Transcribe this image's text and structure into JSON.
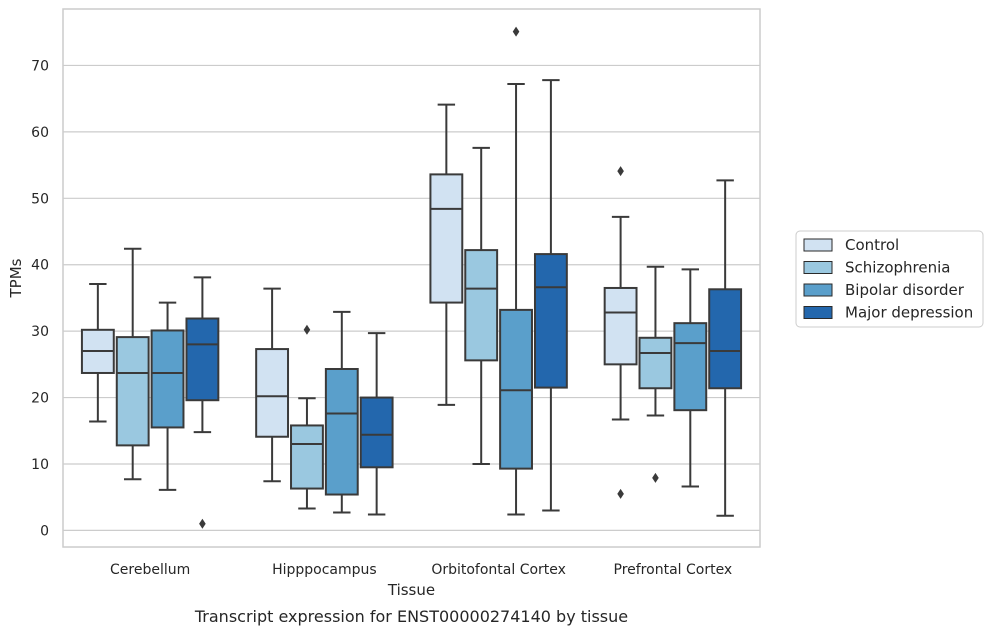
{
  "chart_data": {
    "type": "box",
    "title": "",
    "caption": "Transcript expression for ENST00000274140 by tissue",
    "xlabel": "Tissue",
    "ylabel": "TPMs",
    "ylim": [
      -2.5,
      78.5
    ],
    "yticks": [
      0,
      10,
      20,
      30,
      40,
      50,
      60,
      70
    ],
    "grid": "horizontal",
    "legend_position": "right",
    "categories": [
      "Cerebellum",
      "Hipppocampus",
      "Orbitofontal Cortex",
      "Prefrontal Cortex"
    ],
    "series": [
      {
        "name": "Control",
        "color": "#d1e2f2",
        "boxes": [
          {
            "whislo": 16.4,
            "q1": 23.7,
            "med": 27.0,
            "q3": 30.2,
            "whishi": 37.1,
            "fliers": []
          },
          {
            "whislo": 7.4,
            "q1": 14.1,
            "med": 20.2,
            "q3": 27.3,
            "whishi": 36.4,
            "fliers": []
          },
          {
            "whislo": 18.9,
            "q1": 34.3,
            "med": 48.4,
            "q3": 53.6,
            "whishi": 64.1,
            "fliers": []
          },
          {
            "whislo": 16.7,
            "q1": 25.0,
            "med": 32.8,
            "q3": 36.5,
            "whishi": 47.2,
            "fliers": [
              54.1,
              5.5
            ]
          }
        ]
      },
      {
        "name": "Schizophrenia",
        "color": "#9ac8e0",
        "boxes": [
          {
            "whislo": 7.7,
            "q1": 12.8,
            "med": 23.7,
            "q3": 29.1,
            "whishi": 42.4,
            "fliers": []
          },
          {
            "whislo": 3.3,
            "q1": 6.3,
            "med": 13.0,
            "q3": 15.8,
            "whishi": 19.9,
            "fliers": [
              30.2
            ]
          },
          {
            "whislo": 10.0,
            "q1": 25.6,
            "med": 36.4,
            "q3": 42.2,
            "whishi": 57.6,
            "fliers": []
          },
          {
            "whislo": 17.3,
            "q1": 21.4,
            "med": 26.7,
            "q3": 29.0,
            "whishi": 39.7,
            "fliers": [
              7.9
            ]
          }
        ]
      },
      {
        "name": "Bipolar disorder",
        "color": "#5a9fcb",
        "boxes": [
          {
            "whislo": 6.1,
            "q1": 15.5,
            "med": 23.7,
            "q3": 30.1,
            "whishi": 34.3,
            "fliers": []
          },
          {
            "whislo": 2.7,
            "q1": 5.4,
            "med": 17.6,
            "q3": 24.3,
            "whishi": 32.9,
            "fliers": []
          },
          {
            "whislo": 2.4,
            "q1": 9.3,
            "med": 21.1,
            "q3": 33.2,
            "whishi": 67.2,
            "fliers": [
              75.1
            ]
          },
          {
            "whislo": 6.6,
            "q1": 18.1,
            "med": 28.2,
            "q3": 31.2,
            "whishi": 39.3,
            "fliers": []
          }
        ]
      },
      {
        "name": "Major depression",
        "color": "#2367ad",
        "boxes": [
          {
            "whislo": 14.8,
            "q1": 19.6,
            "med": 28.0,
            "q3": 31.9,
            "whishi": 38.1,
            "fliers": [
              1.0
            ]
          },
          {
            "whislo": 2.4,
            "q1": 9.5,
            "med": 14.4,
            "q3": 20.0,
            "whishi": 29.7,
            "fliers": []
          },
          {
            "whislo": 3.0,
            "q1": 21.5,
            "med": 36.6,
            "q3": 41.6,
            "whishi": 67.8,
            "fliers": []
          },
          {
            "whislo": 2.2,
            "q1": 21.4,
            "med": 27.0,
            "q3": 36.3,
            "whishi": 52.7,
            "fliers": []
          }
        ]
      }
    ]
  }
}
